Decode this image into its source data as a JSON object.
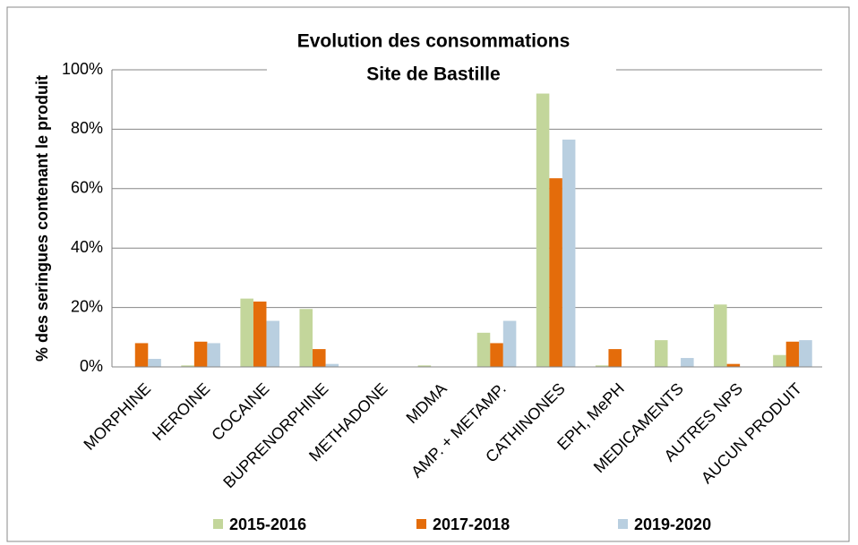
{
  "chart_data": {
    "type": "bar",
    "title": "Evolution des consommations",
    "subtitle": "Site de Bastille",
    "y_label": "% des seringues contenant le produit",
    "categories": [
      "MORPHINE",
      "HEROINE",
      "COCAINE",
      "BUPRENORPHINE",
      "METHADONE",
      "MDMA",
      "AMP. + METAMP.",
      "CATHINONES",
      "EPH, MePH",
      "MEDICAMENTS",
      "AUTRES NPS",
      "AUCUN PRODUIT"
    ],
    "series": [
      {
        "name": "2015-2016",
        "color": "#c3d69b",
        "values": [
          0,
          0.5,
          23,
          19.5,
          0,
          0.5,
          11.5,
          92,
          0.5,
          9,
          21,
          4
        ]
      },
      {
        "name": "2017-2018",
        "color": "#e46c0a",
        "values": [
          8,
          8.5,
          22,
          6,
          0,
          0,
          8,
          63.5,
          6,
          0,
          1,
          8.5
        ]
      },
      {
        "name": "2019-2020",
        "color": "#b9cfe0",
        "values": [
          2.7,
          8,
          15.5,
          1,
          0,
          0,
          15.5,
          76.5,
          0,
          3,
          0,
          9
        ]
      }
    ],
    "ylim": [
      0,
      100
    ],
    "yticks": [
      {
        "value": 0,
        "label": "0%"
      },
      {
        "value": 20,
        "label": "20%"
      },
      {
        "value": 40,
        "label": "40%"
      },
      {
        "value": 60,
        "label": "60%"
      },
      {
        "value": 80,
        "label": "80%"
      },
      {
        "value": 100,
        "label": "100%"
      }
    ],
    "grid": true,
    "legend": "bottom"
  }
}
